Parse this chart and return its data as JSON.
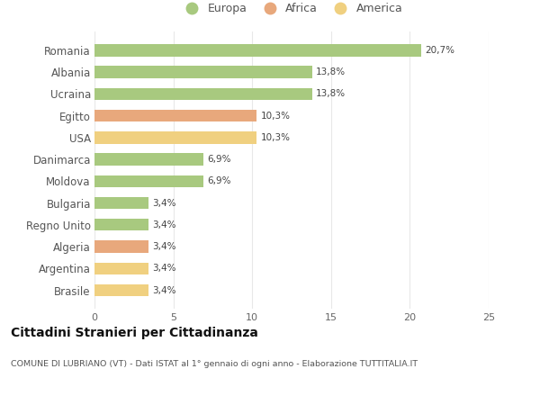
{
  "categories": [
    "Romania",
    "Albania",
    "Ucraina",
    "Egitto",
    "USA",
    "Danimarca",
    "Moldova",
    "Bulgaria",
    "Regno Unito",
    "Algeria",
    "Argentina",
    "Brasile"
  ],
  "values": [
    20.7,
    13.8,
    13.8,
    10.3,
    10.3,
    6.9,
    6.9,
    3.4,
    3.4,
    3.4,
    3.4,
    3.4
  ],
  "labels": [
    "20,7%",
    "13,8%",
    "13,8%",
    "10,3%",
    "10,3%",
    "6,9%",
    "6,9%",
    "3,4%",
    "3,4%",
    "3,4%",
    "3,4%",
    "3,4%"
  ],
  "continents": [
    "Europa",
    "Europa",
    "Europa",
    "Africa",
    "America",
    "Europa",
    "Europa",
    "Europa",
    "Europa",
    "Africa",
    "America",
    "America"
  ],
  "colors": {
    "Europa": "#a8c97f",
    "Africa": "#e8a87c",
    "America": "#f0d080"
  },
  "legend_items": [
    "Europa",
    "Africa",
    "America"
  ],
  "title": "Cittadini Stranieri per Cittadinanza",
  "subtitle": "COMUNE DI LUBRIANO (VT) - Dati ISTAT al 1° gennaio di ogni anno - Elaborazione TUTTITALIA.IT",
  "xlim": [
    0,
    25
  ],
  "xticks": [
    0,
    5,
    10,
    15,
    20,
    25
  ],
  "background_color": "#ffffff",
  "grid_color": "#e8e8e8"
}
